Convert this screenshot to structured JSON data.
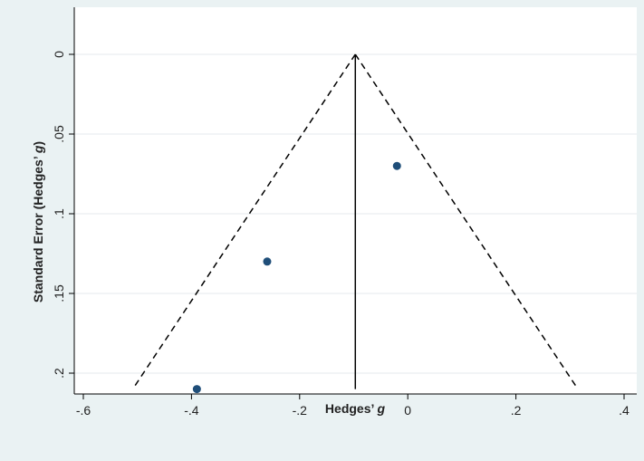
{
  "chart_data": {
    "type": "scatter",
    "title": "",
    "xlabel": "Hedges’ g",
    "ylabel": "Standard Error (Hedges’ g)",
    "x_ticks": [
      "-.6",
      "-.4",
      "-.2",
      "0",
      ".2",
      ".4"
    ],
    "y_ticks": [
      "0",
      ".05",
      ".1",
      ".15",
      ".2"
    ],
    "xlim": [
      -0.625,
      0.42
    ],
    "ylim": [
      0,
      0.21
    ],
    "y_reversed": true,
    "grid": "horizontal",
    "points": [
      {
        "x": -0.39,
        "y": 0.21
      },
      {
        "x": -0.26,
        "y": 0.13
      },
      {
        "x": -0.02,
        "y": 0.07
      }
    ],
    "pooled_estimate": -0.097,
    "funnel_limits": {
      "type": "pseudo 95% CI",
      "se_max": 0.21,
      "z": 1.96
    },
    "colors": {
      "background": "#eaf2f3",
      "plot_area": "#ffffff",
      "points": "#1f4e79",
      "lines": "#000000",
      "grid": "#e4eaec"
    }
  }
}
